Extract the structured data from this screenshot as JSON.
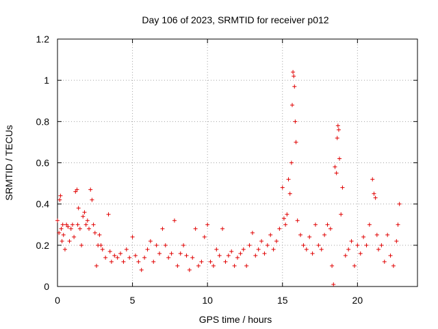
{
  "chart_data": {
    "type": "scatter",
    "title": "Day 106 of 2023, SRMTID for receiver p012",
    "xlabel": "GPS time / hours",
    "ylabel": "SRMTID / TECUs",
    "xlim": [
      0,
      24
    ],
    "ylim": [
      0,
      1.2
    ],
    "xticks": [
      0,
      5,
      10,
      15,
      20
    ],
    "xtick_labels": [
      "0",
      "5",
      "10",
      "15",
      "20"
    ],
    "yticks": [
      0,
      0.2,
      0.4,
      0.6,
      0.8,
      1.0,
      1.2
    ],
    "ytick_labels": [
      "0",
      "0.2",
      "0.4",
      "0.6",
      "0.8",
      "1",
      "1.2"
    ],
    "grid": true,
    "marker": "+",
    "series": [
      {
        "name": "SRMTID",
        "color": "#e00000",
        "x": [
          0.0,
          0.1,
          0.15,
          0.2,
          0.25,
          0.3,
          0.35,
          0.4,
          0.5,
          0.6,
          0.7,
          0.8,
          0.9,
          1.0,
          1.1,
          1.2,
          1.3,
          1.35,
          1.4,
          1.5,
          1.6,
          1.7,
          1.8,
          1.9,
          2.0,
          2.1,
          2.2,
          2.3,
          2.4,
          2.5,
          2.6,
          2.7,
          2.8,
          2.9,
          3.0,
          3.2,
          3.4,
          3.5,
          3.6,
          3.8,
          4.0,
          4.2,
          4.4,
          4.6,
          4.8,
          5.0,
          5.2,
          5.4,
          5.6,
          5.8,
          6.0,
          6.2,
          6.4,
          6.6,
          6.8,
          7.0,
          7.2,
          7.4,
          7.6,
          7.8,
          8.0,
          8.2,
          8.4,
          8.6,
          8.8,
          9.0,
          9.2,
          9.4,
          9.6,
          9.8,
          10.0,
          10.2,
          10.4,
          10.6,
          10.8,
          11.0,
          11.2,
          11.4,
          11.6,
          11.8,
          12.0,
          12.2,
          12.4,
          12.6,
          12.8,
          13.0,
          13.2,
          13.4,
          13.6,
          13.8,
          14.0,
          14.2,
          14.4,
          14.6,
          14.8,
          15.0,
          15.1,
          15.2,
          15.3,
          15.4,
          15.5,
          15.6,
          15.65,
          15.7,
          15.75,
          15.8,
          15.85,
          15.9,
          16.0,
          16.2,
          16.4,
          16.6,
          16.8,
          17.0,
          17.2,
          17.4,
          17.6,
          17.8,
          18.0,
          18.2,
          18.3,
          18.4,
          18.5,
          18.6,
          18.65,
          18.7,
          18.75,
          18.8,
          18.9,
          19.0,
          19.2,
          19.4,
          19.6,
          19.8,
          20.0,
          20.2,
          20.4,
          20.6,
          20.8,
          21.0,
          21.1,
          21.2,
          21.3,
          21.4,
          21.6,
          21.8,
          22.0,
          22.2,
          22.4,
          22.6,
          22.7,
          22.8
        ],
        "y": [
          0.32,
          0.26,
          0.42,
          0.44,
          0.28,
          0.22,
          0.3,
          0.25,
          0.18,
          0.3,
          0.29,
          0.22,
          0.28,
          0.3,
          0.24,
          0.46,
          0.47,
          0.3,
          0.38,
          0.28,
          0.2,
          0.34,
          0.36,
          0.3,
          0.32,
          0.28,
          0.47,
          0.42,
          0.3,
          0.26,
          0.1,
          0.2,
          0.25,
          0.2,
          0.18,
          0.14,
          0.35,
          0.17,
          0.12,
          0.15,
          0.14,
          0.16,
          0.12,
          0.18,
          0.14,
          0.24,
          0.15,
          0.12,
          0.08,
          0.14,
          0.18,
          0.22,
          0.12,
          0.2,
          0.16,
          0.28,
          0.2,
          0.14,
          0.16,
          0.32,
          0.1,
          0.16,
          0.2,
          0.15,
          0.08,
          0.14,
          0.28,
          0.1,
          0.12,
          0.24,
          0.3,
          0.12,
          0.1,
          0.18,
          0.15,
          0.28,
          0.12,
          0.15,
          0.17,
          0.1,
          0.14,
          0.16,
          0.18,
          0.1,
          0.2,
          0.26,
          0.15,
          0.18,
          0.22,
          0.16,
          0.2,
          0.25,
          0.18,
          0.22,
          0.28,
          0.48,
          0.33,
          0.3,
          0.35,
          0.52,
          0.45,
          0.6,
          0.88,
          1.04,
          1.02,
          0.97,
          0.8,
          0.7,
          0.32,
          0.25,
          0.2,
          0.18,
          0.24,
          0.16,
          0.3,
          0.2,
          0.18,
          0.25,
          0.3,
          0.28,
          0.1,
          0.01,
          0.58,
          0.55,
          0.72,
          0.78,
          0.76,
          0.62,
          0.35,
          0.48,
          0.15,
          0.18,
          0.22,
          0.1,
          0.2,
          0.16,
          0.24,
          0.2,
          0.3,
          0.52,
          0.45,
          0.43,
          0.25,
          0.18,
          0.2,
          0.12,
          0.25,
          0.15,
          0.1,
          0.22,
          0.3,
          0.4
        ]
      }
    ]
  }
}
